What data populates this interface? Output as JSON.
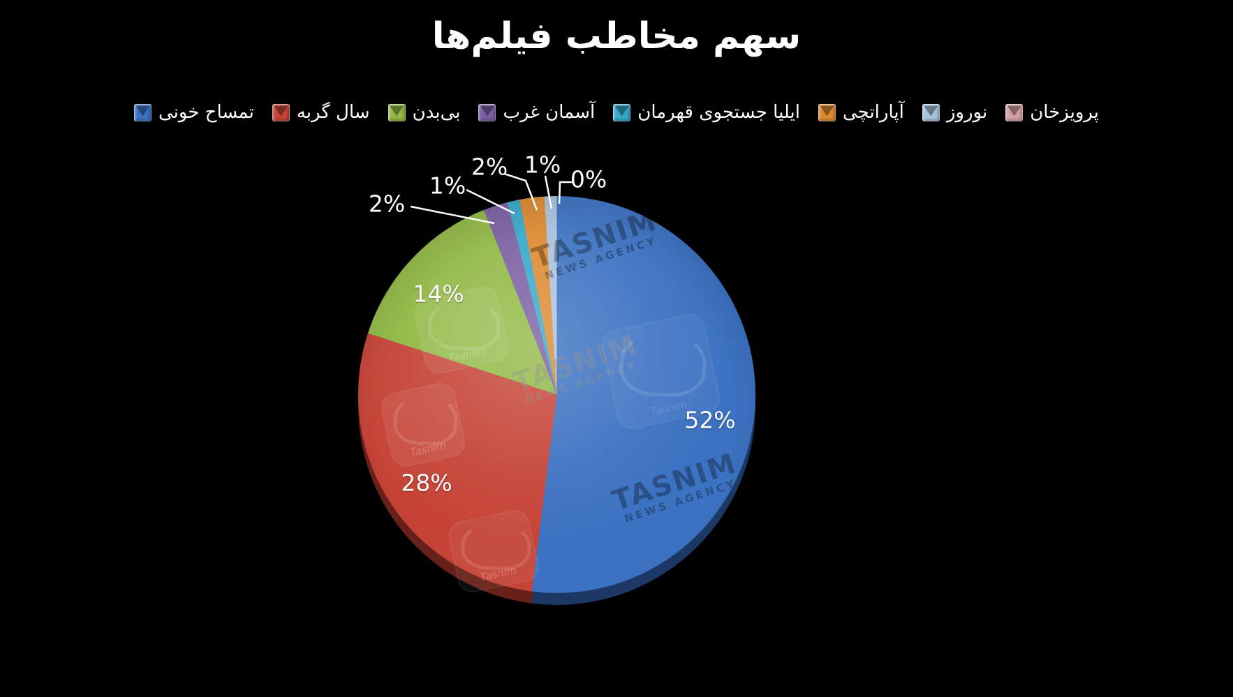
{
  "title": "سهم مخاطب فیلم‌ها",
  "chart_data": {
    "type": "pie",
    "title": "سهم مخاطب فیلم‌ها",
    "unit": "%",
    "legend_position": "top",
    "start_angle_deg": 0,
    "direction": "clockwise",
    "background": "#000000",
    "categories": [
      "تمساح خونی",
      "سال گربه",
      "بی‌بدن",
      "آسمان غرب",
      "ایلیا جستجوی قهرمان",
      "آپاراتچی",
      "نوروز",
      "پرویزخان"
    ],
    "values": [
      52,
      28,
      14,
      2,
      1,
      2,
      1,
      0
    ],
    "colors": [
      "#3c72c2",
      "#c64437",
      "#91b944",
      "#7a5fa3",
      "#38a8ca",
      "#dd8a30",
      "#a9c2de",
      "#d5a0a4"
    ],
    "slice_labels": [
      {
        "text": "52%",
        "placement": "inside"
      },
      {
        "text": "28%",
        "placement": "inside"
      },
      {
        "text": "14%",
        "placement": "inside"
      },
      {
        "text": "2%",
        "placement": "callout"
      },
      {
        "text": "1%",
        "placement": "callout"
      },
      {
        "text": "2%",
        "placement": "callout"
      },
      {
        "text": "1%",
        "placement": "callout"
      },
      {
        "text": "0%",
        "placement": "callout"
      }
    ]
  },
  "legend": {
    "items": [
      {
        "label": "تمساح خونی",
        "color": "#3c72c2"
      },
      {
        "label": "سال گربه",
        "color": "#c64437"
      },
      {
        "label": "بی‌بدن",
        "color": "#91b944"
      },
      {
        "label": "آسمان غرب",
        "color": "#7a5fa3"
      },
      {
        "label": "ایلیا جستجوی قهرمان",
        "color": "#38a8ca"
      },
      {
        "label": "آپاراتچی",
        "color": "#dd8a30"
      },
      {
        "label": "نوروز",
        "color": "#a9c2de"
      },
      {
        "label": "پرویزخان",
        "color": "#d5a0a4"
      }
    ]
  },
  "watermarks": {
    "brand": "TASNIM",
    "agency": "NEWS AGENCY",
    "logo_word": "Tasnim"
  }
}
